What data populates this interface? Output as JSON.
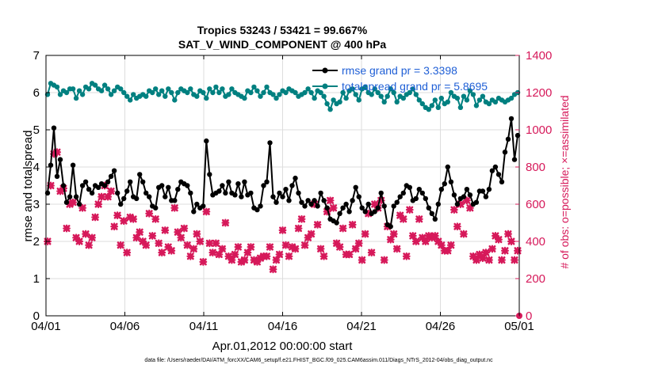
{
  "chart_data": {
    "type": "line",
    "title_line1": "Tropics 53243 / 53421 = 99.667%",
    "title_line2": "SAT_V_WIND_COMPONENT @ 400 hPa",
    "xlabel": "Apr.01,2012 00:00:00 start",
    "ylabel_left": "rmse and totalspread",
    "ylabel_right": "# of obs: o=possible; ×=assimilated",
    "footnote": "data file: /Users/raeder/DAI/ATM_forcXX/CAM6_setup/f.e21.FHIST_BGC.f09_025.CAM6assim.011/Diags_NTrS_2012-04/obs_diag_output.nc",
    "xlim": [
      0,
      30
    ],
    "ylim_left": [
      0,
      7
    ],
    "ylim_right": [
      0,
      1400
    ],
    "x_ticks": [
      {
        "v": 0,
        "label": "04/01"
      },
      {
        "v": 5,
        "label": "04/06"
      },
      {
        "v": 10,
        "label": "04/11"
      },
      {
        "v": 15,
        "label": "04/16"
      },
      {
        "v": 20,
        "label": "04/21"
      },
      {
        "v": 25,
        "label": "04/26"
      },
      {
        "v": 30,
        "label": "05/01"
      }
    ],
    "y_ticks_left": [
      "0",
      "1",
      "2",
      "3",
      "4",
      "5",
      "6",
      "7"
    ],
    "y_ticks_right": [
      "0",
      "200",
      "400",
      "600",
      "800",
      "1000",
      "1200",
      "1400"
    ],
    "grid": true,
    "legend_position": "top-right",
    "legend": [
      {
        "label": "rmse grand pr = 3.3398",
        "series": "rmse"
      },
      {
        "label": "totalspread grand pr = 5.8695",
        "series": "totalspread"
      }
    ],
    "colors": {
      "rmse": "#000000",
      "totalspread": "#008080",
      "obs": "#d6195a",
      "legend_text": "#1f5fd6",
      "axis": "#000000",
      "grid": "#dddddd"
    },
    "rmse": [
      3.3,
      4.05,
      5.05,
      3.75,
      4.2,
      3.5,
      3.05,
      3.2,
      4.05,
      3.2,
      3.0,
      3.5,
      3.6,
      3.4,
      3.3,
      3.5,
      3.45,
      3.55,
      3.5,
      3.6,
      3.75,
      3.9,
      3.3,
      3.0,
      3.15,
      3.35,
      3.6,
      3.2,
      3.15,
      3.8,
      3.6,
      3.3,
      3.2,
      2.95,
      2.9,
      3.45,
      3.5,
      3.2,
      3.45,
      3.1,
      3.1,
      3.4,
      3.6,
      3.55,
      3.5,
      3.3,
      2.8,
      3.0,
      2.9,
      2.95,
      4.7,
      3.8,
      3.25,
      3.3,
      3.35,
      3.5,
      3.3,
      3.6,
      3.3,
      3.25,
      3.55,
      3.2,
      3.6,
      3.25,
      3.3,
      2.9,
      2.85,
      2.95,
      3.5,
      3.6,
      4.65,
      3.2,
      3.05,
      3.3,
      3.2,
      3.4,
      3.1,
      3.5,
      3.7,
      3.3,
      3.05,
      2.95,
      3.1,
      3.0,
      3.1,
      2.95,
      3.3,
      3.1,
      2.9,
      2.6,
      2.55,
      2.5,
      2.75,
      2.9,
      3.0,
      2.8,
      3.1,
      3.45,
      3.2,
      2.9,
      2.8,
      3.0,
      2.75,
      2.8,
      2.9,
      3.3,
      2.95,
      2.45,
      2.4,
      2.95,
      3.05,
      3.2,
      3.3,
      3.5,
      3.45,
      3.1,
      3.15,
      3.4,
      3.3,
      3.15,
      2.9,
      2.75,
      2.6,
      3.0,
      3.4,
      3.55,
      4.0,
      3.6,
      3.25,
      3.0,
      3.15,
      3.2,
      3.4,
      3.25,
      3.0,
      3.05,
      3.35,
      3.35,
      3.2,
      3.4,
      3.9,
      4.0,
      3.8,
      3.6,
      4.4,
      4.75,
      5.3,
      4.2,
      4.85
    ],
    "totalspread": [
      5.95,
      6.25,
      6.2,
      6.15,
      5.95,
      6.05,
      6.0,
      6.1,
      6.1,
      5.85,
      6.05,
      5.95,
      6.15,
      6.1,
      6.25,
      6.2,
      6.1,
      6.05,
      6.2,
      6.1,
      5.95,
      6.05,
      6.15,
      6.1,
      6.0,
      5.9,
      5.8,
      5.95,
      5.85,
      5.9,
      5.95,
      5.9,
      6.05,
      6.0,
      6.1,
      5.95,
      6.05,
      5.9,
      6.1,
      6.0,
      5.8,
      6.0,
      6.1,
      6.05,
      6.0,
      6.1,
      5.95,
      5.9,
      6.05,
      6.0,
      5.85,
      6.1,
      6.0,
      6.15,
      6.0,
      6.1,
      5.9,
      5.95,
      6.1,
      6.0,
      5.95,
      5.9,
      5.85,
      6.05,
      6.0,
      6.15,
      6.05,
      5.9,
      6.0,
      6.15,
      6.0,
      5.95,
      5.85,
      5.95,
      6.05,
      6.0,
      6.1,
      6.05,
      6.0,
      5.9,
      5.95,
      6.0,
      6.1,
      6.0,
      5.85,
      6.05,
      6.0,
      5.9,
      5.7,
      5.55,
      5.8,
      5.7,
      5.75,
      6.0,
      5.85,
      6.05,
      6.1,
      5.95,
      5.8,
      6.1,
      6.15,
      6.0,
      5.95,
      6.1,
      6.0,
      5.9,
      5.75,
      5.9,
      6.1,
      6.0,
      5.75,
      5.9,
      5.85,
      5.95,
      6.0,
      6.1,
      5.95,
      5.8,
      5.7,
      5.6,
      5.55,
      5.65,
      5.8,
      5.6,
      5.85,
      5.7,
      5.75,
      6.0,
      5.9,
      5.85,
      5.6,
      5.9,
      5.8,
      6.05,
      5.95,
      5.65,
      5.8,
      5.9,
      5.75,
      5.7,
      5.8,
      5.75,
      5.85,
      5.8,
      5.75,
      5.8,
      5.85,
      5.95,
      6.0
    ],
    "obs_assimilated": [
      400,
      700,
      870,
      880,
      670,
      685,
      470,
      600,
      610,
      420,
      400,
      580,
      440,
      380,
      420,
      530,
      600,
      640,
      700,
      640,
      670,
      480,
      540,
      380,
      510,
      340,
      530,
      520,
      420,
      450,
      400,
      380,
      550,
      430,
      520,
      390,
      340,
      460,
      370,
      350,
      580,
      450,
      420,
      470,
      380,
      320,
      360,
      440,
      400,
      290,
      560,
      390,
      340,
      390,
      330,
      360,
      500,
      320,
      300,
      330,
      370,
      290,
      300,
      340,
      370,
      300,
      290,
      310,
      320,
      320,
      370,
      250,
      300,
      330,
      460,
      380,
      320,
      370,
      360,
      470,
      520,
      380,
      420,
      440,
      600,
      490,
      360,
      320,
      560,
      620,
      580,
      390,
      370,
      470,
      330,
      330,
      490,
      360,
      390,
      300,
      440,
      550,
      340,
      600,
      580,
      620,
      300,
      480,
      410,
      440,
      360,
      540,
      520,
      320,
      570,
      430,
      400,
      520,
      420,
      400,
      430,
      420,
      430,
      400,
      380,
      350,
      350,
      380,
      570,
      480,
      600,
      440,
      620,
      580,
      320,
      300,
      330,
      310,
      340,
      300,
      360,
      430,
      410,
      300,
      350,
      440,
      400,
      300,
      350
    ]
  }
}
